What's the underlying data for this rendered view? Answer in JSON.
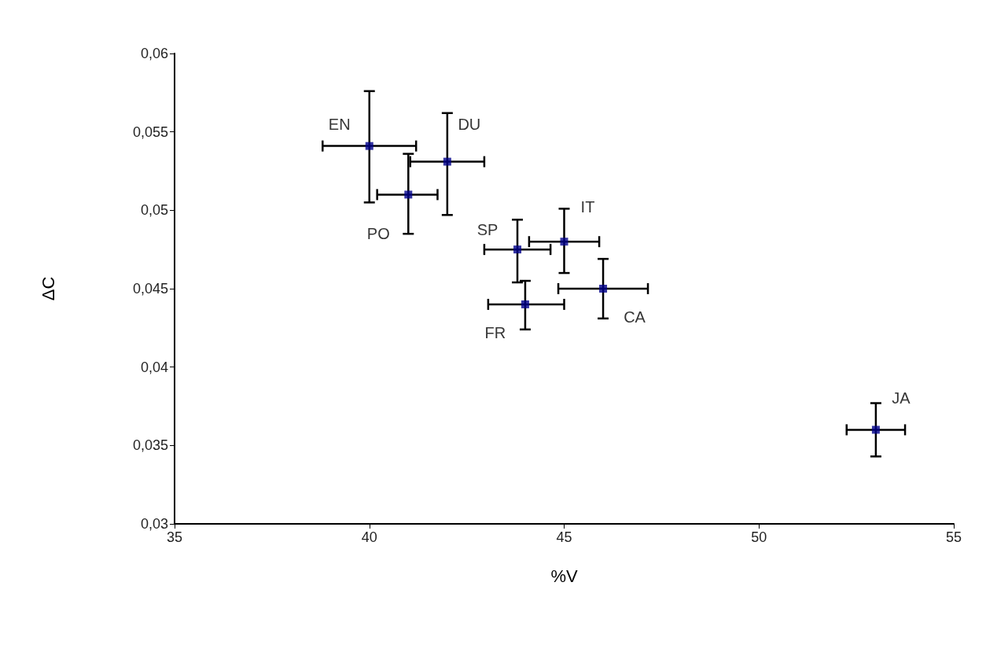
{
  "chart_data": {
    "type": "scatter",
    "xlabel": "%V",
    "ylabel": "ΔC",
    "x": [
      40,
      42,
      41,
      43.8,
      45,
      46,
      44,
      53
    ],
    "series": [
      {
        "color": "#00008b",
        "values": [
          0.0541,
          0.0531,
          0.051,
          0.0475,
          0.048,
          0.045,
          0.044,
          0.036
        ],
        "errors": [
          [
            0.0505,
            0.0576
          ],
          [
            0.0497,
            0.0562
          ],
          [
            0.0485,
            0.0536
          ],
          [
            0.0454,
            0.0494
          ],
          [
            0.046,
            0.0501
          ],
          [
            0.0431,
            0.0469
          ],
          [
            0.0424,
            0.0455
          ],
          [
            0.0343,
            0.0377
          ]
        ],
        "xerrors": [
          [
            38.8,
            41.2
          ],
          [
            41.05,
            42.95
          ],
          [
            40.2,
            41.75
          ],
          [
            42.95,
            44.65
          ],
          [
            44.1,
            45.9
          ],
          [
            44.85,
            47.15
          ],
          [
            43.05,
            45.0
          ],
          [
            52.25,
            53.75
          ]
        ]
      }
    ],
    "annotations": [
      {
        "text": "EN",
        "x": 40,
        "y": 0.0541
      },
      {
        "text": "DU",
        "x": 42,
        "y": 0.0531
      },
      {
        "text": "PO",
        "x": 41,
        "y": 0.051
      },
      {
        "text": "SP",
        "x": 43.8,
        "y": 0.0475
      },
      {
        "text": "IT",
        "x": 45,
        "y": 0.048
      },
      {
        "text": "CA",
        "x": 46,
        "y": 0.045
      },
      {
        "text": "FR",
        "x": 44,
        "y": 0.044
      },
      {
        "text": "JA",
        "x": 53,
        "y": 0.036
      }
    ],
    "xlim": [
      35,
      55
    ],
    "xticks": [
      35,
      40,
      45,
      50,
      55
    ],
    "ylim": [
      0.03,
      0.06
    ],
    "yticks": [
      {
        "value": 0.03,
        "label": "0,03"
      },
      {
        "value": 0.035,
        "label": "0,035"
      },
      {
        "value": 0.04,
        "label": "0,04"
      },
      {
        "value": 0.045,
        "label": "0,045"
      },
      {
        "value": 0.05,
        "label": "0,05"
      },
      {
        "value": 0.055,
        "label": "0,055"
      },
      {
        "value": 0.06,
        "label": "0,06"
      }
    ],
    "grid": false,
    "marker": "square"
  }
}
